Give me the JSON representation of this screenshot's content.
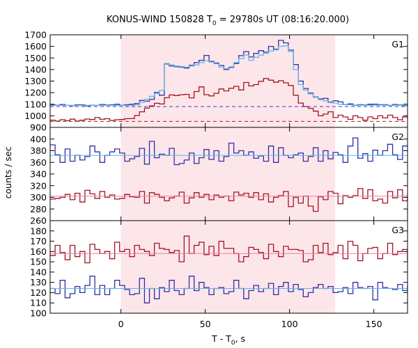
{
  "chart_data": {
    "type": "line",
    "title": {
      "prefix": "KONUS-WIND 150828 T",
      "sub": "0",
      "suffix": " = 29780s UT (08:16:20.000)"
    },
    "xlabel": {
      "prefix": "T - T",
      "sub": "0",
      "suffix": ", s"
    },
    "ylabel": "counts / sec",
    "xlim": [
      -42,
      170
    ],
    "xticks": [
      0,
      50,
      100,
      150
    ],
    "highlight_interval": [
      0,
      127
    ],
    "highlight_color": "#fde6e9",
    "colors": {
      "blue": "#2f2fa8",
      "red": "#a01421",
      "light_blue": "#5fb5e6",
      "pink": "#f07aa8",
      "blue_dashed": "#3a3ad0",
      "red_dashed": "#b01a2a"
    },
    "panels": [
      {
        "label": "G1",
        "ylim": [
          900,
          1700
        ],
        "yticks": [
          900,
          1000,
          1100,
          1200,
          1300,
          1400,
          1500,
          1600,
          1700
        ],
        "x_start": -42,
        "bin_width": 2.944,
        "series": [
          {
            "color": "blue",
            "style": "step",
            "values": [
              1095,
              1092,
              1098,
              1090,
              1088,
              1095,
              1094,
              1086,
              1092,
              1090,
              1098,
              1093,
              1095,
              1100,
              1092,
              1096,
              1100,
              1106,
              1133,
              1126,
              1143,
              1203,
              1178,
              1448,
              1430,
              1425,
              1420,
              1413,
              1436,
              1460,
              1480,
              1522,
              1470,
              1455,
              1435,
              1400,
              1420,
              1452,
              1520,
              1555,
              1508,
              1540,
              1563,
              1550,
              1600,
              1575,
              1652,
              1630,
              1568,
              1443,
              1300,
              1236,
              1196,
              1163,
              1146,
              1150,
              1118,
              1130,
              1120,
              1096,
              1103,
              1091,
              1096,
              1094,
              1100,
              1101,
              1096,
              1096,
              1090,
              1098,
              1094,
              1088,
              1096,
              1099,
              1093
            ]
          },
          {
            "color": "light_blue",
            "style": "step",
            "values": [
              1090,
              1090,
              1090,
              1090,
              1090,
              1090,
              1090,
              1090,
              1090,
              1090,
              1090,
              1090,
              1090,
              1090,
              1090,
              1090,
              1090,
              1095,
              1118,
              1143,
              1168,
              1193,
              1220,
              1452,
              1440,
              1430,
              1425,
              1420,
              1430,
              1440,
              1460,
              1475,
              1465,
              1450,
              1420,
              1408,
              1415,
              1460,
              1495,
              1525,
              1480,
              1505,
              1525,
              1540,
              1560,
              1570,
              1600,
              1605,
              1555,
              1400,
              1270,
              1222,
              1190,
              1160,
              1140,
              1130,
              1122,
              1110,
              1100,
              1098,
              1095,
              1093,
              1092,
              1092,
              1092,
              1092,
              1092,
              1092,
              1092,
              1092,
              1092,
              1092,
              1092,
              1092,
              1092
            ]
          },
          {
            "color": "red",
            "style": "step",
            "values": [
              962,
              955,
              966,
              958,
              971,
              955,
              962,
              972,
              968,
              985,
              970,
              975,
              960,
              966,
              968,
              975,
              976,
              1002,
              1035,
              1066,
              1085,
              1108,
              1102,
              1156,
              1180,
              1175,
              1182,
              1185,
              1155,
              1210,
              1250,
              1182,
              1172,
              1195,
              1232,
              1215,
              1238,
              1255,
              1223,
              1288,
              1258,
              1270,
              1298,
              1322,
              1308,
              1290,
              1303,
              1285,
              1262,
              1178,
              1110,
              1080,
              1065,
              1040,
              1000,
              1015,
              1035,
              985,
              1005,
              990,
              970,
              1000,
              985,
              962,
              990,
              975,
              1000,
              982,
              1005,
              985,
              966,
              990,
              980,
              965,
              975
            ]
          },
          {
            "color": "blue_dashed",
            "style": "dashed",
            "value": 1080
          },
          {
            "color": "red_dashed",
            "style": "dashed",
            "value": 952
          }
        ]
      },
      {
        "label": "G2",
        "ylim": [
          260,
          420
        ],
        "yticks": [
          260,
          280,
          300,
          320,
          340,
          360,
          380,
          400
        ],
        "x_start": -42,
        "bin_width": 2.944,
        "series": [
          {
            "color": "blue",
            "style": "step",
            "values": [
              390,
              373,
              360,
              383,
              362,
              372,
              364,
              370,
              388,
              378,
              360,
              372,
              378,
              383,
              376,
              362,
              366,
              370,
              384,
              357,
              396,
              368,
              374,
              372,
              384,
              356,
              358,
              364,
              376,
              358,
              368,
              382,
              365,
              380,
              362,
              370,
              393,
              376,
              380,
              372,
              378,
              367,
              371,
              362,
              388,
              360,
              385,
              372,
              368,
              373,
              376,
              362,
              370,
              385,
              362,
              380,
              366,
              377,
              373,
              360,
              388,
              402,
              367,
              375,
              362,
              381,
              372,
              380,
              391,
              373,
              365,
              388,
              389,
              380,
              365
            ]
          },
          {
            "color": "light_blue",
            "style": "flat",
            "value": 372
          },
          {
            "color": "red",
            "style": "step",
            "values": [
              297,
              298,
              300,
              305,
              296,
              307,
              292,
              312,
              306,
              298,
              310,
              300,
              304,
              297,
              298,
              305,
              301,
              300,
              310,
              290,
              308,
              305,
              300,
              294,
              299,
              302,
              309,
              290,
              299,
              308,
              300,
              305,
              296,
              304,
              300,
              302,
              294,
              309,
              304,
              307,
              300,
              308,
              296,
              306,
              292,
              300,
              303,
              310,
              284,
              300,
              290,
              302,
              285,
              276,
              301,
              296,
              310,
              307,
              289,
              303,
              300,
              303,
              315,
              298,
              313,
              294,
              297,
              290,
              310,
              299,
              313,
              294,
              304,
              287,
              296
            ]
          },
          {
            "color": "pink",
            "style": "flat",
            "value": 302
          }
        ]
      },
      {
        "label": "G3",
        "ylim": [
          100,
          190
        ],
        "yticks": [
          100,
          110,
          120,
          130,
          140,
          150,
          160,
          170,
          180
        ],
        "x_start": -42,
        "bin_width": 2.944,
        "series": [
          {
            "color": "red",
            "style": "step",
            "values": [
              156,
              166,
              159,
              152,
              166,
              155,
              160,
              149,
              167,
              162,
              158,
              160,
              153,
              169,
              160,
              162,
              155,
              166,
              162,
              160,
              156,
              168,
              163,
              162,
              159,
              161,
              150,
              175,
              158,
              166,
              169,
              157,
              165,
              156,
              170,
              163,
              163,
              158,
              150,
              155,
              164,
              162,
              159,
              153,
              167,
              160,
              155,
              165,
              162,
              162,
              161,
              150,
              152,
              166,
              159,
              168,
              157,
              159,
              166,
              153,
              170,
              166,
              151,
              158,
              163,
              164,
              153,
              158,
              168,
              157,
              160,
              162,
              152,
              160,
              158
            ]
          },
          {
            "color": "pink",
            "style": "flat",
            "value": 158
          },
          {
            "color": "blue",
            "style": "step",
            "values": [
              124,
              119,
              132,
              115,
              119,
              126,
              120,
              127,
              136,
              118,
              127,
              118,
              124,
              132,
              127,
              123,
              118,
              119,
              134,
              110,
              124,
              114,
              125,
              121,
              132,
              122,
              118,
              124,
              136,
              122,
              130,
              125,
              118,
              124,
              125,
              119,
              121,
              132,
              124,
              114,
              122,
              127,
              121,
              124,
              129,
              118,
              126,
              130,
              121,
              128,
              123,
              116,
              120,
              125,
              128,
              124,
              126,
              120,
              121,
              125,
              119,
              130,
              125,
              124,
              126,
              113,
              130,
              125,
              124,
              123,
              128,
              122,
              126,
              120,
              124
            ]
          },
          {
            "color": "light_blue",
            "style": "flat",
            "value": 124
          }
        ]
      }
    ]
  }
}
